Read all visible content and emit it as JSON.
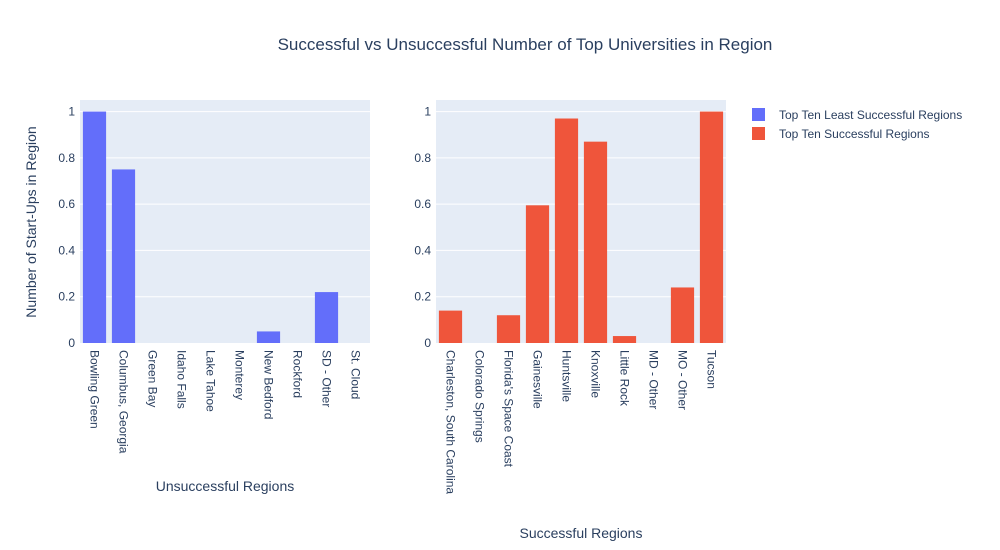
{
  "chart_data": {
    "type": "bar",
    "title": "Successful vs Unsuccessful Number of Top Universities in Region",
    "ylabel": "Number of Start-Ups in Region",
    "ylim": [
      0,
      1.05
    ],
    "yticks": [
      0,
      0.2,
      0.4,
      0.6,
      0.8,
      1
    ],
    "ytick_labels": [
      "0",
      "0.2",
      "0.4",
      "0.6",
      "0.8",
      "1"
    ],
    "legend": {
      "position": "top-right",
      "items": [
        {
          "name": "Top Ten Least Successful Regions",
          "color": "#636efa"
        },
        {
          "name": "Top Ten Successful Regions",
          "color": "#ef553b"
        }
      ]
    },
    "subplots": [
      {
        "name": "Top Ten Least Successful Regions",
        "xlabel": "Unsuccessful Regions",
        "color": "#636efa",
        "categories": [
          "Bowling Green",
          "Columbus, Georgia",
          "Green Bay",
          "Idaho Falls",
          "Lake Tahoe",
          "Monterey",
          "New Bedford",
          "Rockford",
          "SD - Other",
          "St. Cloud"
        ],
        "values": [
          1.0,
          0.75,
          0,
          0,
          0,
          0,
          0.05,
          0,
          0.22,
          0
        ]
      },
      {
        "name": "Top Ten Successful Regions",
        "xlabel": "Successful Regions",
        "color": "#ef553b",
        "categories": [
          "Charleston, South Carolina",
          "Colorado Springs",
          "Florida's Space Coast",
          "Gainesville",
          "Huntsville",
          "Knoxville",
          "Little Rock",
          "MD - Other",
          "MO - Other",
          "Tucson"
        ],
        "values": [
          0.14,
          0,
          0.12,
          0.595,
          0.97,
          0.87,
          0.03,
          0,
          0.24,
          1.0
        ]
      }
    ]
  }
}
